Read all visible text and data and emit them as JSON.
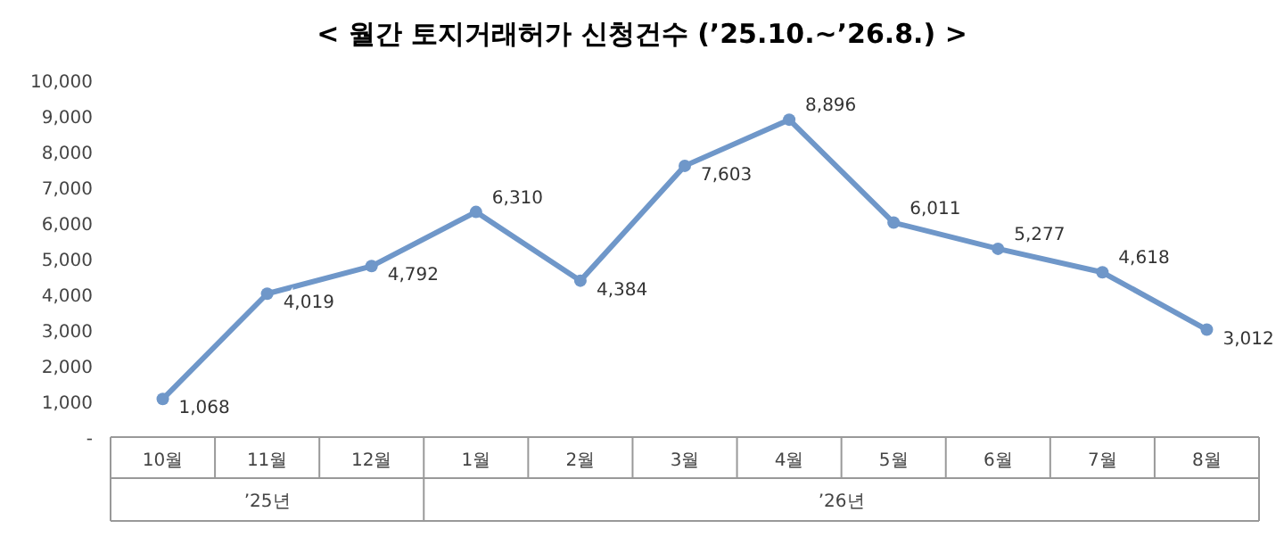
{
  "chart_data": {
    "type": "line",
    "title": "< 월간 토지거래허가 신청건수 (’25.10.~’26.8.) >",
    "categories": [
      "10월",
      "11월",
      "12월",
      "1월",
      "2월",
      "3월",
      "4월",
      "5월",
      "6월",
      "7월",
      "8월"
    ],
    "series": [
      {
        "color": "#6f97c9",
        "values": [
          1068,
          4019,
          4792,
          6310,
          4384,
          7603,
          8896,
          6011,
          5277,
          4618,
          3012
        ],
        "value_labels": [
          "1,068",
          "4,019",
          "4,792",
          "6,310",
          "4,384",
          "7,603",
          "8,896",
          "6,011",
          "5,277",
          "4,618",
          "3,012"
        ]
      }
    ],
    "ylim": [
      0,
      10000
    ],
    "yticks": [
      {
        "value": 0,
        "label": "-"
      },
      "1,000",
      {
        "value": 2000,
        "label": "2,000"
      },
      {
        "value": 3000,
        "label": "3,000"
      },
      {
        "value": 4000,
        "label": "4,000"
      },
      {
        "value": 5000,
        "label": "5,000"
      },
      {
        "value": 6000,
        "label": "6,000"
      },
      {
        "value": 7000,
        "label": "7,000"
      },
      {
        "value": 8000,
        "label": "8,000"
      },
      {
        "value": 9000,
        "label": "9,000"
      },
      {
        "value": 10000,
        "label": "10,000"
      }
    ],
    "annotations": [
      "’25년",
      "’26년"
    ],
    "marker": "circle",
    "line_style": "solid",
    "grid": false
  }
}
